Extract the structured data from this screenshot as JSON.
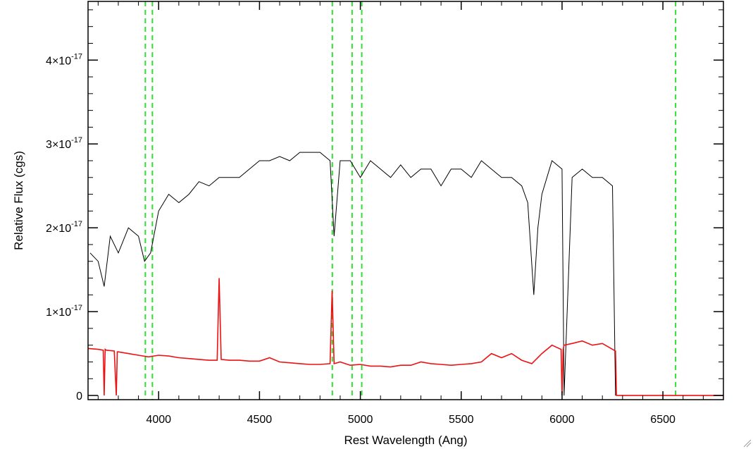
{
  "chart_data": {
    "type": "line",
    "title": "",
    "xlabel": "Rest Wavelength (Ang)",
    "ylabel": "Relative Flux (cgs)",
    "xlim": [
      3650,
      6800
    ],
    "ylim": [
      -5e-19,
      4.7e-17
    ],
    "x_ticks": [
      {
        "value": 4000,
        "label": "4000"
      },
      {
        "value": 4500,
        "label": "4500"
      },
      {
        "value": 5000,
        "label": "5000"
      },
      {
        "value": 5500,
        "label": "5500"
      },
      {
        "value": 6000,
        "label": "6000"
      },
      {
        "value": 6500,
        "label": "6500"
      }
    ],
    "y_ticks": [
      {
        "value": 0,
        "mantissa": "0",
        "exponent": ""
      },
      {
        "value": 1e-17,
        "mantissa": "1×10",
        "exponent": "-17"
      },
      {
        "value": 2e-17,
        "mantissa": "2×10",
        "exponent": "-17"
      },
      {
        "value": 3e-17,
        "mantissa": "3×10",
        "exponent": "-17"
      },
      {
        "value": 4e-17,
        "mantissa": "4×10",
        "exponent": "-17"
      }
    ],
    "grid": false,
    "reference_lines": {
      "style": "dashed",
      "color": "#33dd33",
      "x": [
        3934,
        3969,
        4861,
        4959,
        5007,
        6563
      ]
    },
    "series": [
      {
        "color": "#000000",
        "x": [
          3660,
          3700,
          3730,
          3760,
          3800,
          3850,
          3900,
          3930,
          3960,
          4000,
          4050,
          4100,
          4150,
          4200,
          4250,
          4300,
          4350,
          4400,
          4450,
          4500,
          4550,
          4600,
          4650,
          4700,
          4750,
          4800,
          4850,
          4870,
          4900,
          4950,
          5000,
          5050,
          5100,
          5150,
          5200,
          5250,
          5300,
          5350,
          5400,
          5450,
          5500,
          5550,
          5600,
          5650,
          5700,
          5750,
          5800,
          5830,
          5860,
          5880,
          5900,
          5950,
          6000,
          6010,
          6050,
          6100,
          6150,
          6200,
          6250,
          6265
        ],
        "y": [
          1.7e-17,
          1.6e-17,
          1.3e-17,
          1.9e-17,
          1.7e-17,
          2e-17,
          1.9e-17,
          1.6e-17,
          1.7e-17,
          2.2e-17,
          2.4e-17,
          2.3e-17,
          2.4e-17,
          2.55e-17,
          2.5e-17,
          2.6e-17,
          2.6e-17,
          2.6e-17,
          2.7e-17,
          2.8e-17,
          2.8e-17,
          2.85e-17,
          2.8e-17,
          2.9e-17,
          2.9e-17,
          2.9e-17,
          2.8e-17,
          1.9e-17,
          2.8e-17,
          2.8e-17,
          2.6e-17,
          2.8e-17,
          2.7e-17,
          2.6e-17,
          2.75e-17,
          2.6e-17,
          2.7e-17,
          2.7e-17,
          2.5e-17,
          2.7e-17,
          2.7e-17,
          2.6e-17,
          2.8e-17,
          2.7e-17,
          2.6e-17,
          2.6e-17,
          2.5e-17,
          2.3e-17,
          1.2e-17,
          2e-17,
          2.4e-17,
          2.8e-17,
          2.7e-17,
          0.0,
          2.6e-17,
          2.7e-17,
          2.6e-17,
          2.6e-17,
          2.5e-17,
          0.0
        ]
      },
      {
        "color": "#ee1111",
        "x": [
          3650,
          3700,
          3725,
          3730,
          3735,
          3740,
          3780,
          3790,
          3795,
          3800,
          3850,
          3900,
          3950,
          4000,
          4050,
          4100,
          4150,
          4200,
          4250,
          4290,
          4300,
          4310,
          4350,
          4400,
          4450,
          4500,
          4550,
          4600,
          4650,
          4700,
          4750,
          4800,
          4850,
          4860,
          4870,
          4900,
          4950,
          5000,
          5050,
          5100,
          5150,
          5200,
          5250,
          5300,
          5350,
          5400,
          5450,
          5500,
          5550,
          5600,
          5650,
          5700,
          5750,
          5800,
          5850,
          5900,
          5950,
          5995,
          6000,
          6005,
          6010,
          6050,
          6100,
          6150,
          6200,
          6250,
          6265,
          6270,
          6300,
          6500,
          6800
        ],
        "y": [
          5.6e-18,
          5.5e-18,
          5.4e-18,
          0.0,
          5.5e-18,
          5.4e-18,
          5.3e-18,
          0.0,
          5.2e-18,
          5.2e-18,
          5e-18,
          4.8e-18,
          4.6e-18,
          4.8e-18,
          4.7e-18,
          4.5e-18,
          4.4e-18,
          4.3e-18,
          4.2e-18,
          4.2e-18,
          1.4e-17,
          4.3e-18,
          4.2e-18,
          4.2e-18,
          4.1e-18,
          4.1e-18,
          4.5e-18,
          4e-18,
          3.9e-18,
          3.8e-18,
          3.7e-18,
          3.7e-18,
          3.8e-18,
          1.25e-17,
          3.8e-18,
          4e-18,
          3.6e-18,
          3.7e-18,
          3.5e-18,
          3.5e-18,
          3.4e-18,
          3.6e-18,
          3.6e-18,
          4e-18,
          3.8e-18,
          3.7e-18,
          3.6e-18,
          3.7e-18,
          3.8e-18,
          4e-18,
          5e-18,
          4.5e-18,
          5e-18,
          4.2e-18,
          3.8e-18,
          5e-18,
          6e-18,
          5.5e-18,
          0.0,
          5.5e-18,
          6e-18,
          6.2e-18,
          6.5e-18,
          6e-18,
          6.2e-18,
          5.5e-18,
          5.3e-18,
          0.0,
          0.0,
          0.0,
          0.0
        ]
      }
    ]
  }
}
